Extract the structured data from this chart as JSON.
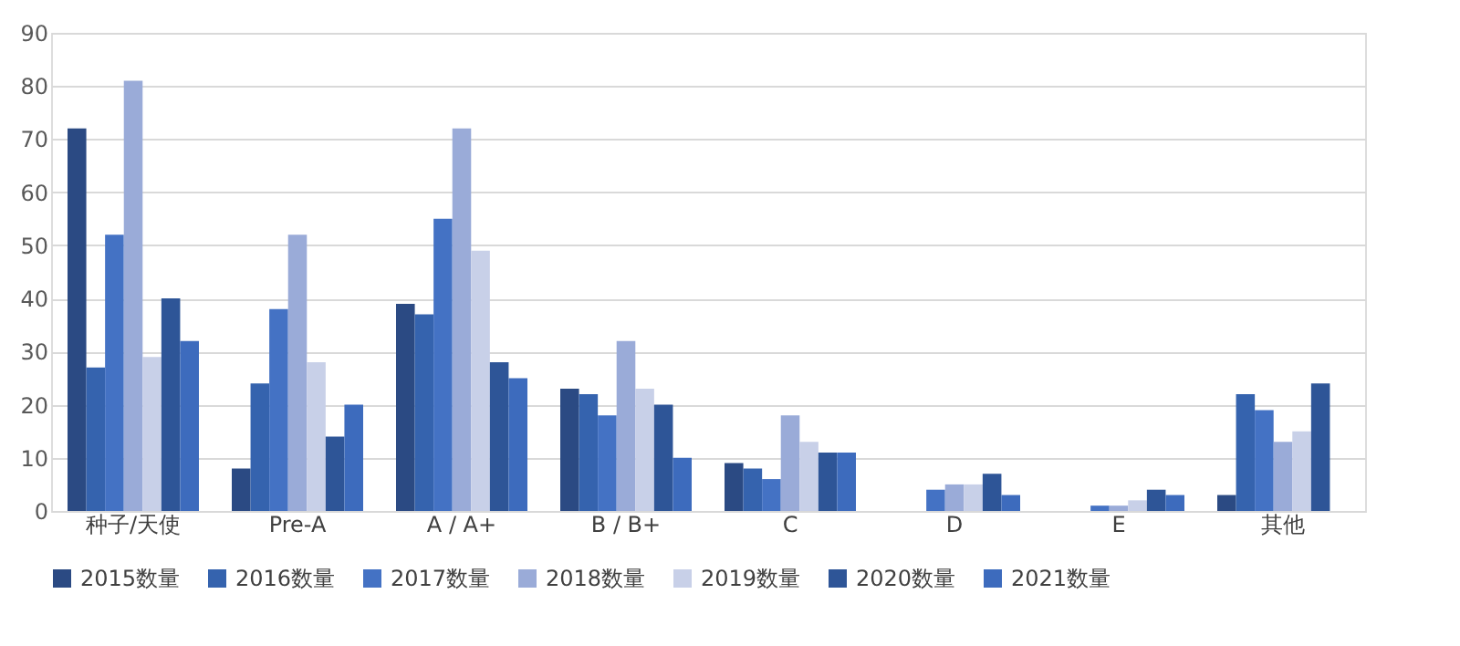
{
  "chart_data": {
    "type": "bar",
    "categories": [
      "种子/天使",
      "Pre-A",
      "A / A+",
      "B / B+",
      "C",
      "D",
      "E",
      "其他"
    ],
    "series": [
      {
        "name": "2015数量",
        "color": "#2b4a83",
        "values": [
          72,
          8,
          39,
          23,
          9,
          null,
          null,
          3
        ]
      },
      {
        "name": "2016数量",
        "color": "#3563ae",
        "values": [
          27,
          24,
          37,
          22,
          8,
          null,
          null,
          22
        ]
      },
      {
        "name": "2017数量",
        "color": "#4472c4",
        "values": [
          52,
          38,
          55,
          18,
          6,
          4,
          1,
          19
        ]
      },
      {
        "name": "2018数量",
        "color": "#9aabd8",
        "values": [
          81,
          52,
          72,
          32,
          18,
          5,
          1,
          13
        ]
      },
      {
        "name": "2019数量",
        "color": "#c8d0e8",
        "values": [
          29,
          28,
          49,
          23,
          13,
          5,
          2,
          15
        ]
      },
      {
        "name": "2020数量",
        "color": "#2e5597",
        "values": [
          40,
          14,
          28,
          20,
          11,
          7,
          4,
          24
        ]
      },
      {
        "name": "2021数量",
        "color": "#3d6bbd",
        "values": [
          32,
          20,
          25,
          10,
          11,
          3,
          3,
          null
        ]
      }
    ],
    "ylim": [
      0,
      90
    ],
    "yticks": [
      0,
      10,
      20,
      30,
      40,
      50,
      60,
      70,
      80,
      90
    ],
    "grid": "y",
    "legend": "bottom"
  }
}
